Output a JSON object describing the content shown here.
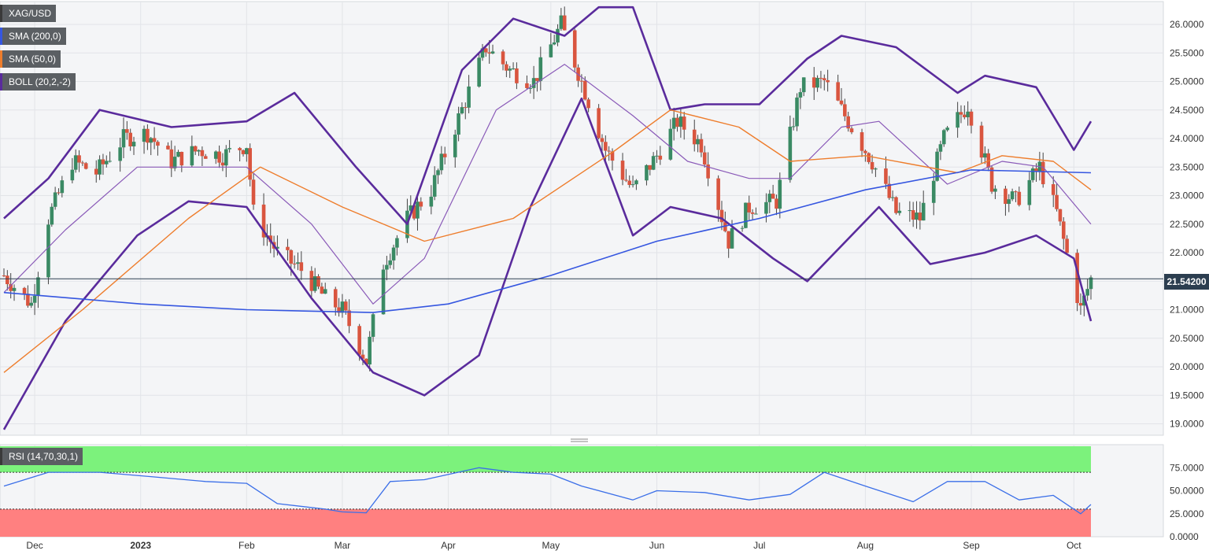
{
  "chart_data": {
    "type": "candlestick",
    "symbol": "XAG/USD",
    "indicators": [
      {
        "label": "SMA (200,0)",
        "color": "#3556e0"
      },
      {
        "label": "SMA (50,0)",
        "color": "#ee7d2c"
      },
      {
        "label": "BOLL (20,2,-2)",
        "color": "#5a2b9c"
      }
    ],
    "last_price": "21.54200",
    "last_value": 21.542,
    "y_axis": {
      "range": [
        18.8,
        26.4
      ],
      "ticks": [
        "19.0000",
        "19.5000",
        "20.0000",
        "20.5000",
        "21.0000",
        "21.5000",
        "22.0000",
        "22.5000",
        "23.0000",
        "23.5000",
        "24.0000",
        "24.5000",
        "25.0000",
        "25.5000",
        "26.0000"
      ]
    },
    "x_axis_labels": [
      "Dec",
      "2023",
      "Feb",
      "Mar",
      "Apr",
      "May",
      "Jun",
      "Jul",
      "Aug",
      "Sep",
      "Oct"
    ],
    "date_range": [
      "2022-11-22",
      "2023-10-06"
    ],
    "close_path": [
      [
        "2022-11-22",
        21.6
      ],
      [
        "2022-11-30",
        21.1
      ],
      [
        "2022-12-05",
        22.6
      ],
      [
        "2022-12-12",
        23.6
      ],
      [
        "2022-12-19",
        23.4
      ],
      [
        "2022-12-27",
        24.0
      ],
      [
        "2023-01-03",
        24.1
      ],
      [
        "2023-01-10",
        23.6
      ],
      [
        "2023-01-18",
        23.8
      ],
      [
        "2023-01-25",
        23.7
      ],
      [
        "2023-02-01",
        23.9
      ],
      [
        "2023-02-03",
        22.7
      ],
      [
        "2023-02-10",
        22.0
      ],
      [
        "2023-02-17",
        21.7
      ],
      [
        "2023-02-24",
        21.2
      ],
      [
        "2023-03-01",
        21.0
      ],
      [
        "2023-03-08",
        20.1
      ],
      [
        "2023-03-13",
        21.8
      ],
      [
        "2023-03-20",
        22.6
      ],
      [
        "2023-03-27",
        23.1
      ],
      [
        "2023-04-03",
        24.2
      ],
      [
        "2023-04-12",
        25.6
      ],
      [
        "2023-04-19",
        25.2
      ],
      [
        "2023-04-26",
        25.0
      ],
      [
        "2023-05-04",
        26.0
      ],
      [
        "2023-05-10",
        25.0
      ],
      [
        "2023-05-17",
        23.8
      ],
      [
        "2023-05-25",
        23.1
      ],
      [
        "2023-06-01",
        23.7
      ],
      [
        "2023-06-07",
        24.3
      ],
      [
        "2023-06-14",
        23.9
      ],
      [
        "2023-06-22",
        22.2
      ],
      [
        "2023-06-28",
        22.8
      ],
      [
        "2023-07-06",
        22.9
      ],
      [
        "2023-07-13",
        24.9
      ],
      [
        "2023-07-20",
        25.0
      ],
      [
        "2023-07-27",
        24.3
      ],
      [
        "2023-08-03",
        23.6
      ],
      [
        "2023-08-10",
        22.7
      ],
      [
        "2023-08-17",
        22.6
      ],
      [
        "2023-08-24",
        24.0
      ],
      [
        "2023-08-31",
        24.6
      ],
      [
        "2023-09-07",
        23.2
      ],
      [
        "2023-09-14",
        22.9
      ],
      [
        "2023-09-21",
        23.5
      ],
      [
        "2023-09-26",
        22.7
      ],
      [
        "2023-10-03",
        21.0
      ],
      [
        "2023-10-06",
        21.542
      ]
    ],
    "sma200_path": [
      [
        "2022-11-22",
        21.3
      ],
      [
        "2023-01-01",
        21.1
      ],
      [
        "2023-02-01",
        21.0
      ],
      [
        "2023-03-10",
        20.95
      ],
      [
        "2023-04-01",
        21.1
      ],
      [
        "2023-05-01",
        21.6
      ],
      [
        "2023-06-01",
        22.2
      ],
      [
        "2023-07-01",
        22.6
      ],
      [
        "2023-08-01",
        23.1
      ],
      [
        "2023-09-01",
        23.45
      ],
      [
        "2023-10-06",
        23.4
      ]
    ],
    "sma50_path": [
      [
        "2022-11-22",
        19.9
      ],
      [
        "2022-12-15",
        21.0
      ],
      [
        "2023-01-15",
        22.6
      ],
      [
        "2023-02-05",
        23.5
      ],
      [
        "2023-03-01",
        22.8
      ],
      [
        "2023-03-25",
        22.2
      ],
      [
        "2023-04-20",
        22.6
      ],
      [
        "2023-05-20",
        23.8
      ],
      [
        "2023-06-05",
        24.5
      ],
      [
        "2023-06-25",
        24.2
      ],
      [
        "2023-07-10",
        23.6
      ],
      [
        "2023-08-01",
        23.7
      ],
      [
        "2023-08-28",
        23.4
      ],
      [
        "2023-09-10",
        23.7
      ],
      [
        "2023-09-25",
        23.6
      ],
      [
        "2023-10-06",
        23.1
      ]
    ],
    "boll_mid_path": [
      [
        "2022-11-22",
        21.3
      ],
      [
        "2022-12-10",
        22.4
      ],
      [
        "2022-12-31",
        23.5
      ],
      [
        "2023-02-01",
        23.5
      ],
      [
        "2023-02-20",
        22.5
      ],
      [
        "2023-03-10",
        21.1
      ],
      [
        "2023-03-25",
        21.9
      ],
      [
        "2023-04-15",
        24.5
      ],
      [
        "2023-05-05",
        25.3
      ],
      [
        "2023-05-25",
        24.4
      ],
      [
        "2023-06-10",
        23.6
      ],
      [
        "2023-06-28",
        23.3
      ],
      [
        "2023-07-10",
        23.3
      ],
      [
        "2023-07-25",
        24.2
      ],
      [
        "2023-08-05",
        24.3
      ],
      [
        "2023-08-25",
        23.2
      ],
      [
        "2023-09-10",
        23.6
      ],
      [
        "2023-09-22",
        23.5
      ],
      [
        "2023-10-06",
        22.5
      ]
    ],
    "boll_upper_path": [
      [
        "2022-11-22",
        22.6
      ],
      [
        "2022-12-05",
        23.3
      ],
      [
        "2022-12-20",
        24.5
      ],
      [
        "2023-01-10",
        24.2
      ],
      [
        "2023-02-01",
        24.3
      ],
      [
        "2023-02-15",
        24.8
      ],
      [
        "2023-03-05",
        23.5
      ],
      [
        "2023-03-20",
        22.5
      ],
      [
        "2023-04-05",
        25.2
      ],
      [
        "2023-04-20",
        26.1
      ],
      [
        "2023-05-05",
        25.8
      ],
      [
        "2023-05-15",
        26.3
      ],
      [
        "2023-05-25",
        26.3
      ],
      [
        "2023-06-05",
        24.5
      ],
      [
        "2023-06-15",
        24.6
      ],
      [
        "2023-07-01",
        24.6
      ],
      [
        "2023-07-15",
        25.4
      ],
      [
        "2023-07-25",
        25.8
      ],
      [
        "2023-08-10",
        25.6
      ],
      [
        "2023-08-28",
        24.8
      ],
      [
        "2023-09-05",
        25.1
      ],
      [
        "2023-09-20",
        24.9
      ],
      [
        "2023-10-01",
        23.8
      ],
      [
        "2023-10-06",
        24.3
      ]
    ],
    "boll_lower_path": [
      [
        "2022-11-22",
        18.9
      ],
      [
        "2022-12-10",
        20.8
      ],
      [
        "2022-12-31",
        22.3
      ],
      [
        "2023-01-15",
        22.9
      ],
      [
        "2023-02-01",
        22.8
      ],
      [
        "2023-02-20",
        21.2
      ],
      [
        "2023-03-10",
        19.9
      ],
      [
        "2023-03-25",
        19.5
      ],
      [
        "2023-04-10",
        20.2
      ],
      [
        "2023-04-25",
        22.8
      ],
      [
        "2023-05-10",
        24.7
      ],
      [
        "2023-05-25",
        22.3
      ],
      [
        "2023-06-05",
        22.8
      ],
      [
        "2023-06-20",
        22.6
      ],
      [
        "2023-07-05",
        21.9
      ],
      [
        "2023-07-15",
        21.5
      ],
      [
        "2023-08-05",
        22.8
      ],
      [
        "2023-08-20",
        21.8
      ],
      [
        "2023-09-05",
        22.0
      ],
      [
        "2023-09-20",
        22.3
      ],
      [
        "2023-10-01",
        21.9
      ],
      [
        "2023-10-06",
        20.8
      ]
    ],
    "rsi": {
      "label": "RSI (14,70,30,1)",
      "overbought": 70,
      "oversold": 30,
      "y_ticks": [
        "0.0000",
        "25.0000",
        "50.0000",
        "75.0000"
      ],
      "path": [
        [
          "2022-11-22",
          55
        ],
        [
          "2022-12-05",
          70
        ],
        [
          "2022-12-20",
          70
        ],
        [
          "2023-01-05",
          65
        ],
        [
          "2023-01-20",
          60
        ],
        [
          "2023-02-01",
          58
        ],
        [
          "2023-02-10",
          36
        ],
        [
          "2023-02-24",
          30
        ],
        [
          "2023-03-01",
          27
        ],
        [
          "2023-03-08",
          26
        ],
        [
          "2023-03-15",
          60
        ],
        [
          "2023-03-25",
          62
        ],
        [
          "2023-04-10",
          75
        ],
        [
          "2023-04-20",
          70
        ],
        [
          "2023-05-01",
          68
        ],
        [
          "2023-05-10",
          55
        ],
        [
          "2023-05-25",
          40
        ],
        [
          "2023-06-01",
          50
        ],
        [
          "2023-06-15",
          48
        ],
        [
          "2023-06-28",
          40
        ],
        [
          "2023-07-10",
          46
        ],
        [
          "2023-07-20",
          70
        ],
        [
          "2023-08-01",
          55
        ],
        [
          "2023-08-15",
          38
        ],
        [
          "2023-08-25",
          60
        ],
        [
          "2023-09-05",
          60
        ],
        [
          "2023-09-15",
          40
        ],
        [
          "2023-09-25",
          45
        ],
        [
          "2023-10-03",
          25
        ],
        [
          "2023-10-06",
          35
        ]
      ]
    }
  }
}
